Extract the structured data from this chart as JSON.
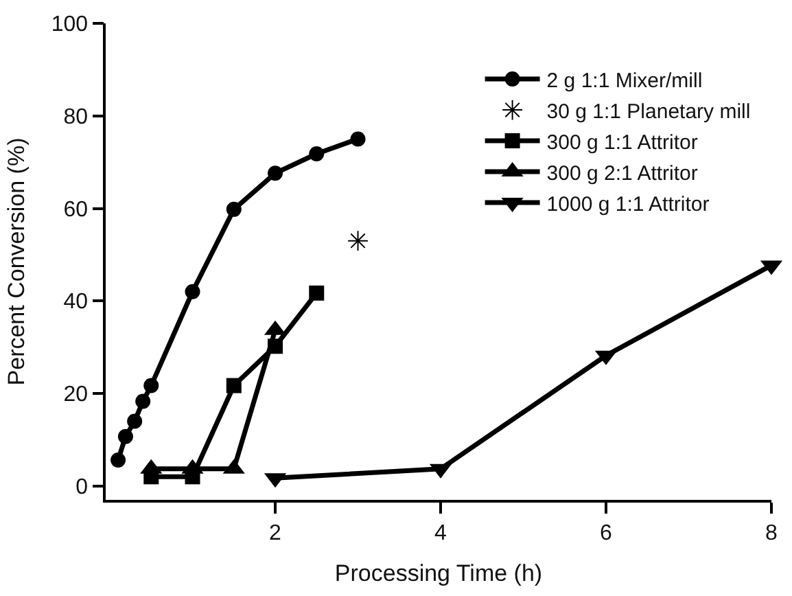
{
  "chart_data": {
    "type": "line",
    "xlabel": "Processing Time (h)",
    "ylabel": "Percent Conversion (%)",
    "xlim": [
      -0.05,
      8
    ],
    "xticks": [
      2,
      4,
      6,
      8
    ],
    "ylim": [
      -3,
      100
    ],
    "yticks": [
      0,
      20,
      40,
      60,
      80,
      100
    ],
    "legend": "top right",
    "line_style": "solid",
    "series": [
      {
        "name": "2 g 1:1 Mixer/mill",
        "color": "#000000",
        "marker": "circle",
        "x": [
          0.1,
          0.19,
          0.3,
          0.4,
          0.5,
          1.0,
          1.5,
          2.0,
          2.5,
          3.0
        ],
        "values": [
          5.6,
          10.7,
          14,
          18.3,
          21.7,
          42,
          59.8,
          67.6,
          71.8,
          75
        ]
      },
      {
        "name": "30 g 1:1 Planetary mill",
        "color": "#000000",
        "type": "scatter",
        "marker": "cross",
        "x": [
          3.0
        ],
        "values": [
          53
        ]
      },
      {
        "name": "300 g 1:1 Attritor",
        "color": "#000000",
        "marker": "square",
        "x": [
          0.5,
          1.0,
          1.5,
          2.0,
          2.5
        ],
        "values": [
          2,
          2,
          21.7,
          30.2,
          41.7
        ]
      },
      {
        "name": "300 g 2:1 Attritor",
        "color": "#000000",
        "marker": "triangle",
        "x": [
          0.5,
          1.0,
          1.5,
          2.0
        ],
        "values": [
          3.7,
          3.7,
          3.7,
          33.7
        ]
      },
      {
        "name": "1000 g 1:1 Attritor",
        "color": "#000000",
        "marker": "triangle-down",
        "x": [
          2,
          4,
          6,
          8
        ],
        "values": [
          1.7,
          3.7,
          28.2,
          47.7
        ]
      }
    ]
  }
}
